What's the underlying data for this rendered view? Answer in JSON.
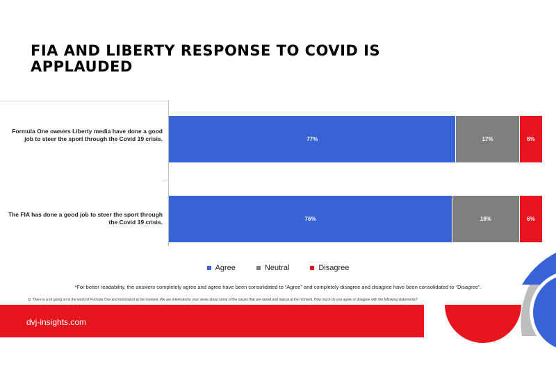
{
  "title": "FIA AND LIBERTY RESPONSE TO COVID IS APPLAUDED",
  "colors": {
    "agree": "#3763d6",
    "neutral": "#7f7f7f",
    "disagree": "#e8141e",
    "brand_red": "#e8141e",
    "gray_arc": "#bdbdbd"
  },
  "legend": {
    "agree": "Agree",
    "neutral": "Neutral",
    "disagree": "Disagree"
  },
  "footnote": "*For better readability, the answers completely agree and agree have been consolidated to “Agree” and completely disagree and disagree have been consolidated to “Disagree”.",
  "question": "Q: There is a lot going on in the world of Formula One and motorsport at the moment.  We are interested in your views about some of the issues that are raised and topical at the moment. How much do you agree or disagree with the following statements?",
  "brand": "dvj-insights.com",
  "chart_data": {
    "type": "bar",
    "orientation": "horizontal",
    "stacked": true,
    "categories": [
      "Formula One owners Liberty media have done a good job to steer the sport through the Covid 19 crisis.",
      "The FIA has done a good job to steer the sport through the Covid 19 crisis."
    ],
    "series": [
      {
        "name": "Agree",
        "values": [
          77,
          76
        ],
        "labels": [
          "77%",
          "76%"
        ],
        "color": "#3763d6"
      },
      {
        "name": "Neutral",
        "values": [
          17,
          18
        ],
        "labels": [
          "17%",
          "18%"
        ],
        "color": "#7f7f7f"
      },
      {
        "name": "Disagree",
        "values": [
          6,
          6
        ],
        "labels": [
          "6%",
          "6%"
        ],
        "color": "#e8141e"
      }
    ],
    "xlim": [
      0,
      100
    ],
    "legend_position": "bottom"
  }
}
